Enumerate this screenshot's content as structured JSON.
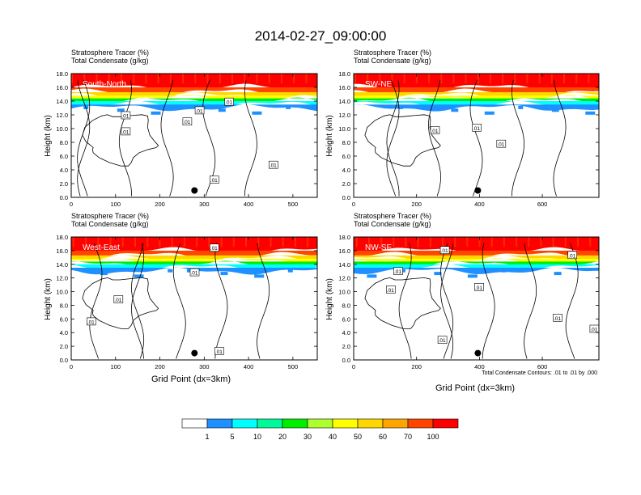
{
  "title": "2014-02-27_09:00:00",
  "panel_header": {
    "line1": "Stratosphere Tracer   (%)",
    "line2": "Total Condensate   (g/kg)"
  },
  "ylabel": "Height (km)",
  "xlabel": "Grid Point (dx=3km)",
  "contour_note": "Total Condensate Contours: .01 to .01 by .000",
  "colorbar": {
    "colors": [
      "#ffffff",
      "#1e90ff",
      "#00ffff",
      "#00fa9a",
      "#00ee00",
      "#adff2f",
      "#ffff00",
      "#ffd700",
      "#ffa500",
      "#ff4500",
      "#ff0000"
    ],
    "labels": [
      "1",
      "5",
      "10",
      "20",
      "30",
      "40",
      "50",
      "60",
      "70",
      "100"
    ]
  },
  "chart_data": [
    {
      "type": "heatmap",
      "panel_label": "South-North",
      "xticks": [
        "0",
        "100",
        "200",
        "300",
        "400",
        "500"
      ],
      "xlim": [
        0,
        555
      ],
      "yticks": [
        "0.0",
        "2.0",
        "4.0",
        "6.0",
        "8.0",
        "10.0",
        "12.0",
        "14.0",
        "16.0",
        "18.0"
      ],
      "ylim": [
        0,
        18
      ],
      "marker_x": 278,
      "marker_y": 1.0,
      "contour_labels": [
        ".01",
        ".01",
        ".01",
        ".01",
        ".01",
        ".01",
        ".01"
      ]
    },
    {
      "type": "heatmap",
      "panel_label": "SW-NE",
      "xticks": [
        "0",
        "200",
        "400",
        "600"
      ],
      "xlim": [
        0,
        780
      ],
      "yticks": [
        "0.0",
        "2.0",
        "4.0",
        "6.0",
        "8.0",
        "10.0",
        "12.0",
        "14.0",
        "16.0",
        "18.0"
      ],
      "ylim": [
        0,
        18
      ],
      "marker_x": 395,
      "marker_y": 1.0,
      "contour_labels": [
        ".01",
        ".01",
        ".01"
      ]
    },
    {
      "type": "heatmap",
      "panel_label": "West-East",
      "xticks": [
        "0",
        "100",
        "200",
        "300",
        "400",
        "500"
      ],
      "xlim": [
        0,
        555
      ],
      "yticks": [
        "0.0",
        "2.0",
        "4.0",
        "6.0",
        "8.0",
        "10.0",
        "12.0",
        "14.0",
        "16.0",
        "18.0"
      ],
      "ylim": [
        0,
        18
      ],
      "marker_x": 278,
      "marker_y": 1.0,
      "contour_labels": [
        ".01",
        ".01",
        ".01",
        ".01",
        ".01"
      ]
    },
    {
      "type": "heatmap",
      "panel_label": "NW-SE",
      "xticks": [
        "0",
        "200",
        "400",
        "600"
      ],
      "xlim": [
        0,
        780
      ],
      "yticks": [
        "0.0",
        "2.0",
        "4.0",
        "6.0",
        "8.0",
        "10.0",
        "12.0",
        "14.0",
        "16.0",
        "18.0"
      ],
      "ylim": [
        0,
        18
      ],
      "marker_x": 395,
      "marker_y": 1.0,
      "contour_labels": [
        ".01",
        ".01",
        ".01",
        ".01",
        ".01",
        ".01",
        ".01",
        ".01"
      ]
    }
  ]
}
